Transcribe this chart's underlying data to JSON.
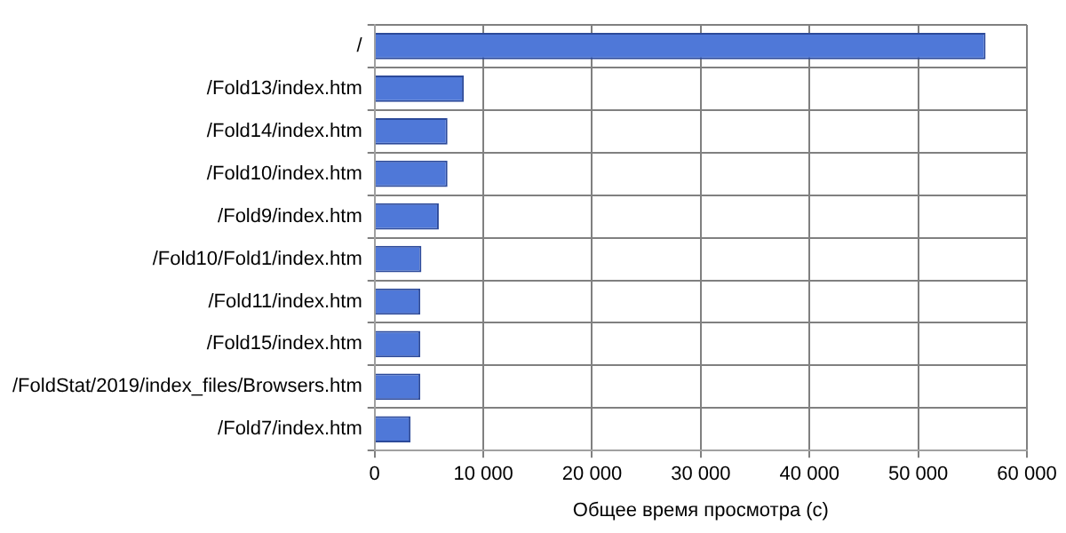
{
  "chart_data": {
    "type": "bar",
    "orientation": "horizontal",
    "xlabel": "Общее время просмотра (с)",
    "categories": [
      "/",
      "/Fold13/index.htm",
      "/Fold14/index.htm",
      "/Fold10/index.htm",
      "/Fold9/index.htm",
      "/Fold10/Fold1/index.htm",
      "/Fold11/index.htm",
      "/Fold15/index.htm",
      "/FoldStat/2019/index_files/Browsers.htm",
      "/Fold7/index.htm"
    ],
    "values": [
      56200,
      8200,
      6700,
      6700,
      5900,
      4300,
      4200,
      4200,
      4200,
      3300
    ],
    "color": "#4f78d8",
    "xlim": [
      0,
      60000
    ],
    "xticks": [
      {
        "value": 0,
        "label": "0"
      },
      {
        "value": 10000,
        "label": "10 000"
      },
      {
        "value": 20000,
        "label": "20 000"
      },
      {
        "value": 30000,
        "label": "30 000"
      },
      {
        "value": 40000,
        "label": "40 000"
      },
      {
        "value": 50000,
        "label": "50 000"
      },
      {
        "value": 60000,
        "label": "60 000"
      }
    ],
    "grid": true,
    "legend": false
  }
}
